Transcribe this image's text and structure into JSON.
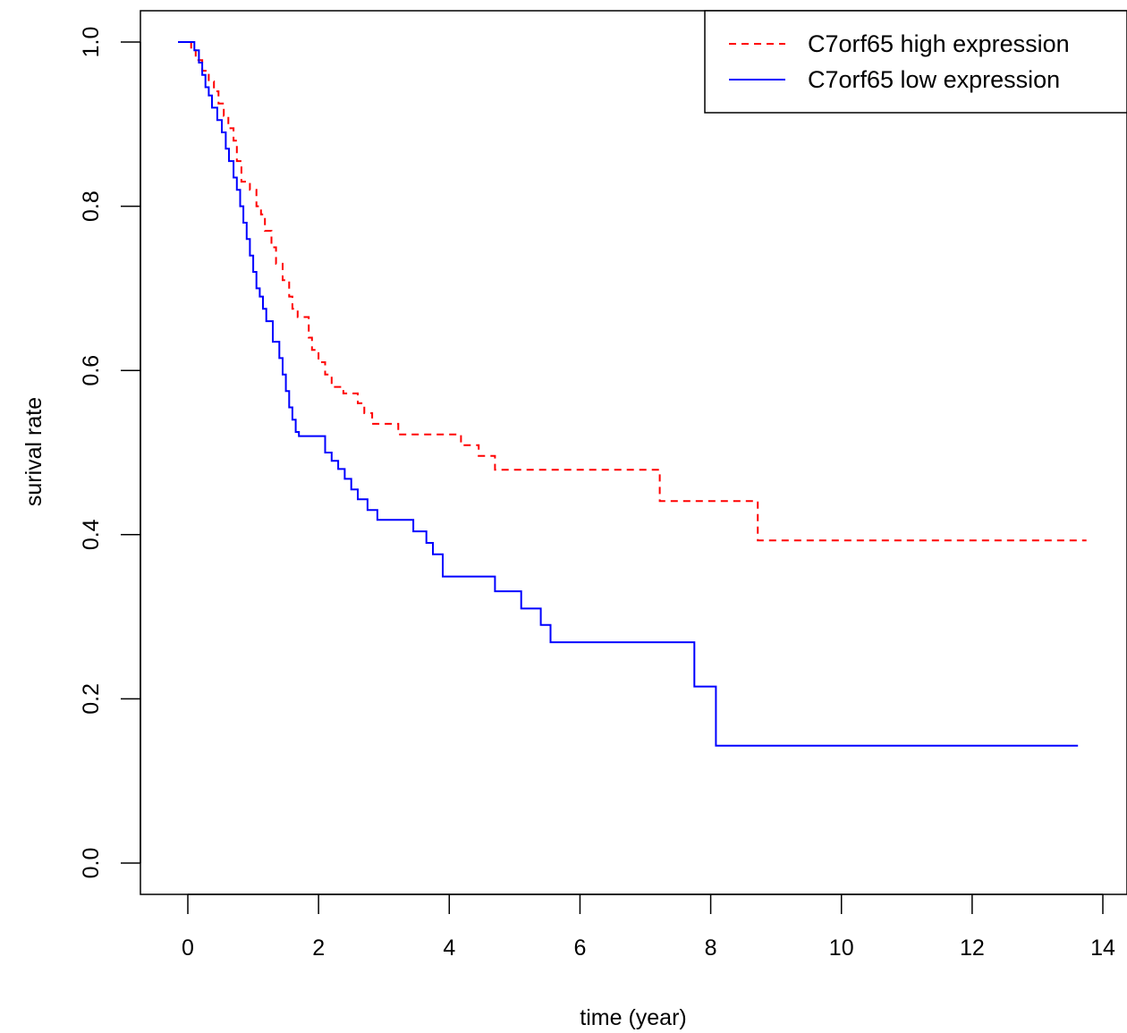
{
  "chart_data": {
    "type": "line",
    "title": "",
    "xlabel": "time (year)",
    "ylabel": "surival rate",
    "xlim": [
      -0.8,
      14.4
    ],
    "ylim": [
      -0.04,
      1.04
    ],
    "xticks": [
      0,
      2,
      4,
      6,
      8,
      10,
      12,
      14
    ],
    "yticks": [
      0.0,
      0.2,
      0.4,
      0.6,
      0.8,
      1.0
    ],
    "xtick_labels": [
      "0",
      "2",
      "4",
      "6",
      "8",
      "10",
      "12",
      "14"
    ],
    "ytick_labels": [
      "0.0",
      "0.2",
      "0.4",
      "0.6",
      "0.8",
      "1.0"
    ],
    "grid": false,
    "legend_position": "top-right",
    "series": [
      {
        "name": "C7orf65 high expression",
        "color": "#ff0000",
        "dash": "dashed",
        "step": true,
        "x": [
          -0.15,
          0.05,
          0.12,
          0.22,
          0.32,
          0.4,
          0.47,
          0.55,
          0.62,
          0.7,
          0.75,
          0.82,
          0.95,
          1.05,
          1.12,
          1.18,
          1.28,
          1.35,
          1.45,
          1.55,
          1.6,
          1.68,
          1.85,
          1.9,
          2.0,
          2.1,
          2.2,
          2.38,
          2.6,
          2.7,
          2.82,
          3.22,
          4.18,
          4.45,
          4.7,
          4.95,
          7.22,
          8.72,
          13.75
        ],
        "y": [
          1.0,
          0.99,
          0.978,
          0.965,
          0.952,
          0.94,
          0.925,
          0.91,
          0.895,
          0.88,
          0.855,
          0.83,
          0.82,
          0.8,
          0.79,
          0.77,
          0.75,
          0.73,
          0.71,
          0.69,
          0.675,
          0.665,
          0.64,
          0.625,
          0.61,
          0.595,
          0.58,
          0.572,
          0.56,
          0.548,
          0.535,
          0.522,
          0.509,
          0.496,
          0.479,
          0.479,
          0.441,
          0.393,
          0.393
        ]
      },
      {
        "name": "C7orf65 low expression",
        "color": "#0000ff",
        "dash": "solid",
        "step": true,
        "x": [
          -0.15,
          0.1,
          0.17,
          0.22,
          0.27,
          0.32,
          0.37,
          0.45,
          0.52,
          0.58,
          0.63,
          0.7,
          0.75,
          0.8,
          0.85,
          0.9,
          0.95,
          1.0,
          1.05,
          1.1,
          1.15,
          1.2,
          1.3,
          1.4,
          1.45,
          1.5,
          1.55,
          1.6,
          1.65,
          1.7,
          1.75,
          1.8,
          1.9,
          2.0,
          2.1,
          2.2,
          2.3,
          2.4,
          2.5,
          2.6,
          2.75,
          2.9,
          3.0,
          3.45,
          3.65,
          3.75,
          3.9,
          4.7,
          5.1,
          5.4,
          5.55,
          7.75,
          8.08,
          13.62
        ],
        "y": [
          1.0,
          0.99,
          0.975,
          0.96,
          0.945,
          0.935,
          0.92,
          0.905,
          0.89,
          0.87,
          0.855,
          0.835,
          0.82,
          0.8,
          0.78,
          0.76,
          0.74,
          0.72,
          0.7,
          0.69,
          0.675,
          0.66,
          0.635,
          0.615,
          0.595,
          0.575,
          0.555,
          0.54,
          0.525,
          0.52,
          0.52,
          0.52,
          0.52,
          0.52,
          0.5,
          0.49,
          0.48,
          0.468,
          0.455,
          0.443,
          0.43,
          0.418,
          0.418,
          0.404,
          0.39,
          0.376,
          0.349,
          0.331,
          0.31,
          0.29,
          0.269,
          0.215,
          0.143,
          0.143
        ]
      }
    ]
  }
}
